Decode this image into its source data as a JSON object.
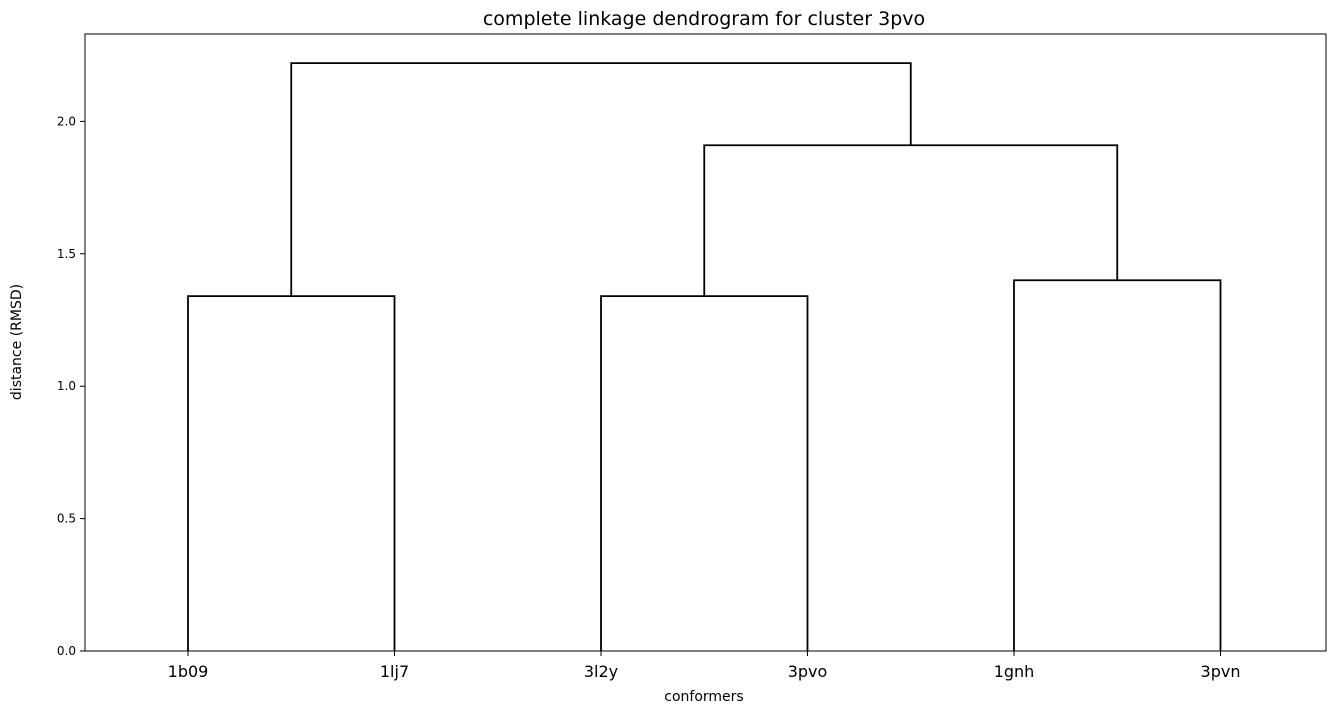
{
  "chart_data": {
    "type": "dendrogram",
    "title": "complete linkage dendrogram for cluster 3pvo",
    "xlabel": "conformers",
    "ylabel": "distance (RMSD)",
    "leaves": [
      "1b09",
      "1lj7",
      "3l2y",
      "3pvo",
      "1gnh",
      "3pvn"
    ],
    "ylim": [
      0,
      2.33
    ],
    "yticks": [
      "0.0",
      "0.5",
      "1.0",
      "1.5",
      "2.0"
    ],
    "ytick_values": [
      0.0,
      0.5,
      1.0,
      1.5,
      2.0
    ],
    "merges": [
      {
        "children": [
          "1b09",
          "1lj7"
        ],
        "height": 1.34
      },
      {
        "children": [
          "3l2y",
          "3pvo"
        ],
        "height": 1.34
      },
      {
        "children": [
          "1gnh",
          "3pvn"
        ],
        "height": 1.4
      },
      {
        "children": [
          "3l2y+3pvo",
          "1gnh+3pvn"
        ],
        "height": 1.91
      },
      {
        "children": [
          "1b09+1lj7",
          "3l2y+3pvo+1gnh+3pvn"
        ],
        "height": 2.22
      }
    ],
    "line_color": "#000000",
    "grid": false
  }
}
